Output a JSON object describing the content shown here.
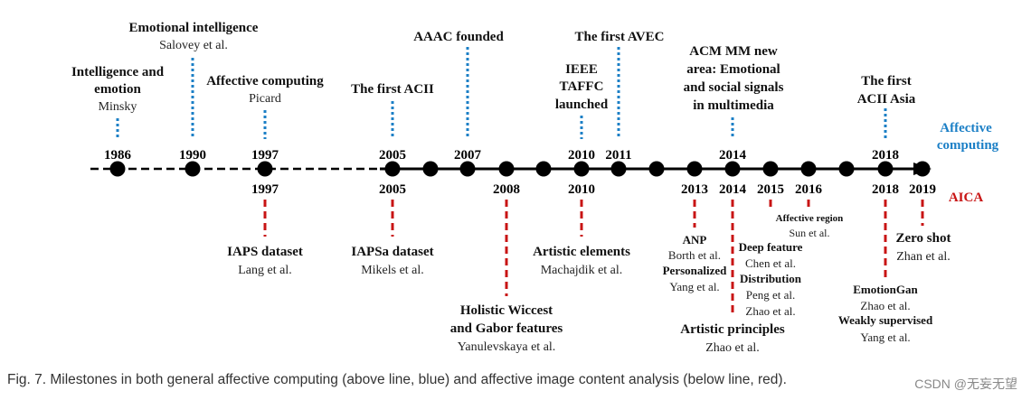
{
  "colors": {
    "top_line": "#1b7fc6",
    "bottom_line": "#c81414",
    "axis": "#000000"
  },
  "axis_labels": {
    "top": "Affective computing",
    "bottom": "AICA"
  },
  "top_years": [
    "1986",
    "1990",
    "1997",
    "2005",
    "2007",
    "2010",
    "2011",
    "2014",
    "2018"
  ],
  "bottom_years": [
    "1997",
    "2005",
    "2008",
    "2010",
    "2013",
    "2014",
    "2015",
    "2016",
    "2018",
    "2019"
  ],
  "top_events": [
    {
      "title": [
        "Intelligence and",
        "emotion"
      ],
      "author": "Minsky"
    },
    {
      "title": [
        "Emotional intelligence"
      ],
      "author": "Salovey et al."
    },
    {
      "title": [
        "Affective computing"
      ],
      "author": "Picard"
    },
    {
      "title": [
        "The first ACII"
      ]
    },
    {
      "title": [
        "AAAC founded"
      ]
    },
    {
      "title": [
        "IEEE",
        "TAFFC",
        "launched"
      ]
    },
    {
      "title": [
        "The first AVEC"
      ]
    },
    {
      "title": [
        "ACM MM new",
        "area: Emotional",
        "and social signals",
        "in multimedia"
      ]
    },
    {
      "title": [
        "The first",
        "ACII Asia"
      ]
    }
  ],
  "bottom_events": [
    {
      "title": "IAPS dataset",
      "author": "Lang et al."
    },
    {
      "title": "IAPSa dataset",
      "author": "Mikels et al."
    },
    {
      "title": [
        "Holistic Wiccest",
        "and Gabor features"
      ],
      "author": "Yanulevskaya et al."
    },
    {
      "title": "Artistic elements",
      "author": "Machajdik et al."
    },
    {
      "title": "ANP",
      "author": "Borth et al."
    },
    {
      "title": "Personalized",
      "author": "Yang et al."
    },
    {
      "title": "Deep feature",
      "author": "Chen et al."
    },
    {
      "title": "Distribution",
      "author": "Peng et al."
    },
    {
      "title": "",
      "author": "Zhao et al."
    },
    {
      "title": "Artistic principles",
      "author": "Zhao et al."
    },
    {
      "title": "Affective region",
      "author": "Sun et al."
    },
    {
      "title": "EmotionGan",
      "author": "Zhao et al."
    },
    {
      "title": "Weakly supervised",
      "author": "Yang et al."
    },
    {
      "title": "Zero shot",
      "author": "Zhan et al."
    }
  ],
  "caption": "Fig. 7. Milestones in both general affective computing (above line, blue) and affective image content analysis (below line, red).",
  "watermark": "CSDN @无妄无望"
}
